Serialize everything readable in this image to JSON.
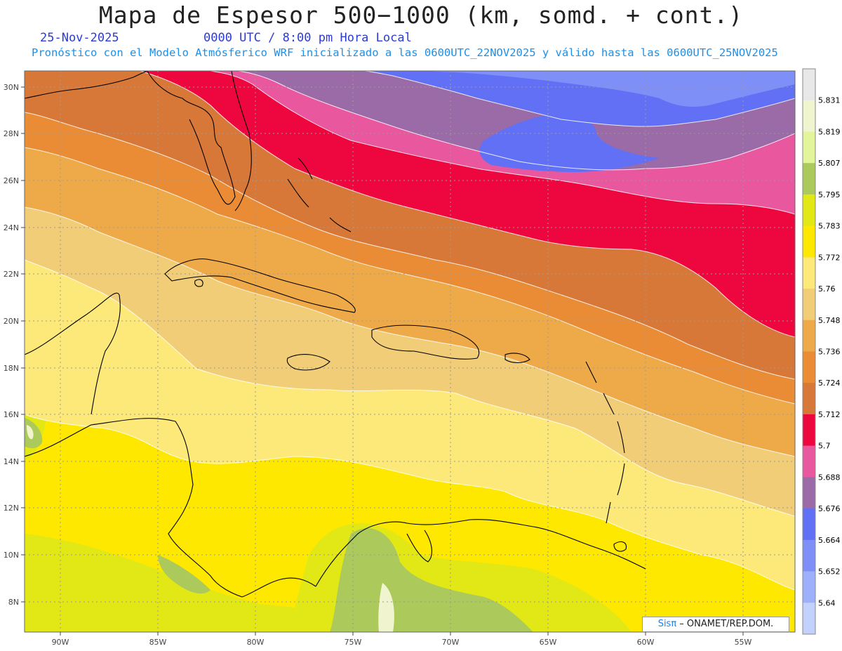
{
  "header": {
    "title": "Mapa de Espesor 500−1000 (km, somd. + cont.)",
    "date": "25-Nov-2025",
    "time": "0000 UTC / 8:00 pm Hora Local",
    "subtitle": "Pronóstico con el Modelo Atmósferico WRF inicializado a las 0600UTC_22NOV2025 y válido hasta las  0600UTC_25NOV2025"
  },
  "map": {
    "lat_labels": [
      "30N",
      "28N",
      "26N",
      "24N",
      "22N",
      "20N",
      "18N",
      "16N",
      "14N",
      "12N",
      "10N",
      "8N"
    ],
    "lon_labels": [
      "90W",
      "85W",
      "80W",
      "75W",
      "70W",
      "65W",
      "60W",
      "55W"
    ],
    "regions_depicted": [
      "Florida",
      "Bahamas",
      "Cuba",
      "Jamaica",
      "Hispaniola",
      "Puerto Rico",
      "Lesser Antilles",
      "Central America",
      "Colombia",
      "Venezuela"
    ]
  },
  "colorbar": {
    "labels": [
      "5.831",
      "5.819",
      "5.807",
      "5.795",
      "5.783",
      "5.772",
      "5.76",
      "5.748",
      "5.736",
      "5.724",
      "5.712",
      "5.7",
      "5.688",
      "5.676",
      "5.664",
      "5.652",
      "5.64"
    ],
    "colors": [
      "#e8e8e8",
      "#f0f5d0",
      "#e3f59a",
      "#acc95c",
      "#e1e815",
      "#ffe800",
      "#fde97a",
      "#f2cd77",
      "#eeaa48",
      "#e98c35",
      "#d87838",
      "#ee073f",
      "#e9579f",
      "#9b6ba7",
      "#6170f5",
      "#7f8ff8",
      "#9eb0fb",
      "#c2d1fd"
    ]
  },
  "credit": {
    "sis": "Sisπ",
    "org": " – ONAMET/REP.DOM."
  }
}
